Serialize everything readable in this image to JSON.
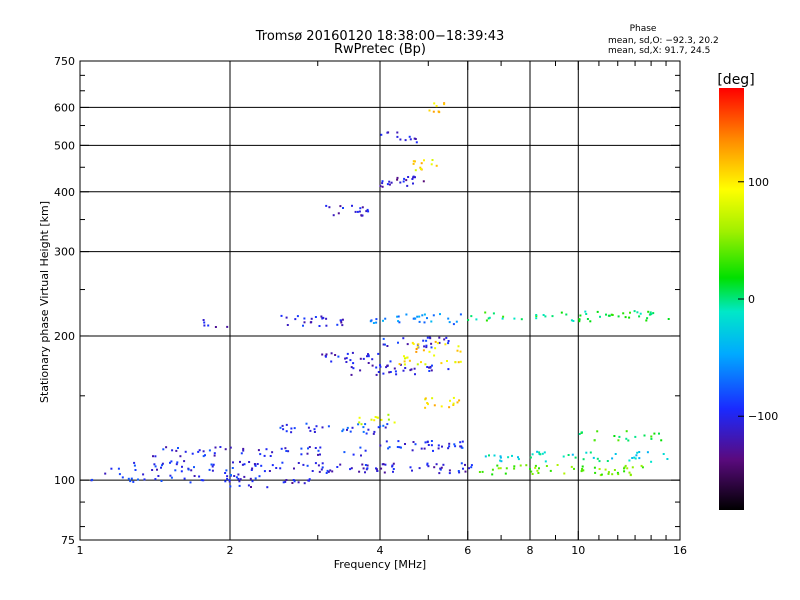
{
  "chart_data": {
    "type": "scatter",
    "title": "Tromsø 20160120 18:38:00−18:39:43",
    "subtitle": "RwPretec (Bp)",
    "xlabel": "Frequency [MHz]",
    "ylabel": "Stationary phase Virtual Height [km]",
    "x_scale": "log",
    "y_scale": "log",
    "xlim": [
      1,
      16
    ],
    "ylim": [
      75,
      750
    ],
    "x_ticks": [
      1,
      2,
      4,
      6,
      8,
      10,
      16
    ],
    "y_ticks": [
      75,
      100,
      200,
      300,
      400,
      500,
      600,
      750
    ],
    "x_gridlines": [
      2,
      4,
      6,
      8,
      10
    ],
    "y_gridlines": [
      100,
      200,
      300,
      400,
      500,
      600
    ],
    "grid": true,
    "phase_stats": {
      "title": "Phase",
      "o_line": "mean, sd,O: −92.3, 20.2",
      "x_line": "mean, sd,X:  91.7, 24.5"
    },
    "colorbar": {
      "label": "[deg]",
      "range": [
        -180,
        180
      ],
      "ticks": [
        100,
        0,
        -100
      ],
      "tick_labels": [
        "100",
        "0",
        "−100"
      ]
    },
    "traces": [
      {
        "x0": 1.05,
        "x1": 2.3,
        "y": 101,
        "phase": -95,
        "n": 40
      },
      {
        "x0": 1.15,
        "x1": 3.0,
        "y": 107,
        "phase": -100,
        "n": 55
      },
      {
        "x0": 2.0,
        "x1": 2.9,
        "y": 99,
        "phase": -110,
        "n": 18
      },
      {
        "x0": 3.0,
        "x1": 6.2,
        "y": 106,
        "phase": -105,
        "n": 60
      },
      {
        "x0": 6.3,
        "x1": 13.5,
        "y": 105,
        "phase": 40,
        "n": 55
      },
      {
        "x0": 1.4,
        "x1": 4.0,
        "y": 115,
        "phase": -100,
        "n": 50
      },
      {
        "x0": 2.5,
        "x1": 4.2,
        "y": 128,
        "phase": -90,
        "n": 35
      },
      {
        "x0": 3.6,
        "x1": 4.3,
        "y": 134,
        "phase": 80,
        "n": 12
      },
      {
        "x0": 4.0,
        "x1": 6.0,
        "y": 118,
        "phase": -95,
        "n": 35
      },
      {
        "x0": 6.5,
        "x1": 15.5,
        "y": 112,
        "phase": -20,
        "n": 45
      },
      {
        "x0": 10.0,
        "x1": 15.0,
        "y": 124,
        "phase": 20,
        "n": 20
      },
      {
        "x0": 4.8,
        "x1": 5.8,
        "y": 145,
        "phase": 100,
        "n": 15
      },
      {
        "x0": 3.0,
        "x1": 4.2,
        "y": 180,
        "phase": -105,
        "n": 25
      },
      {
        "x0": 3.5,
        "x1": 5.5,
        "y": 170,
        "phase": -110,
        "n": 35
      },
      {
        "x0": 4.3,
        "x1": 5.9,
        "y": 178,
        "phase": 95,
        "n": 18
      },
      {
        "x0": 3.9,
        "x1": 5.5,
        "y": 194,
        "phase": -100,
        "n": 25
      },
      {
        "x0": 4.6,
        "x1": 6.0,
        "y": 190,
        "phase": 110,
        "n": 15
      },
      {
        "x0": 2.5,
        "x1": 3.4,
        "y": 215,
        "phase": -105,
        "n": 25
      },
      {
        "x0": 3.8,
        "x1": 6.0,
        "y": 217,
        "phase": -60,
        "n": 30
      },
      {
        "x0": 6.0,
        "x1": 15.5,
        "y": 220,
        "phase": 10,
        "n": 55
      },
      {
        "x0": 1.75,
        "x1": 2.0,
        "y": 213,
        "phase": -110,
        "n": 6
      },
      {
        "x0": 3.1,
        "x1": 3.9,
        "y": 365,
        "phase": -110,
        "n": 18
      },
      {
        "x0": 4.0,
        "x1": 4.9,
        "y": 420,
        "phase": -115,
        "n": 22
      },
      {
        "x0": 4.6,
        "x1": 5.3,
        "y": 455,
        "phase": 100,
        "n": 12
      },
      {
        "x0": 5.0,
        "x1": 5.4,
        "y": 600,
        "phase": 110,
        "n": 8
      },
      {
        "x0": 4.0,
        "x1": 4.8,
        "y": 520,
        "phase": -110,
        "n": 12
      }
    ]
  }
}
